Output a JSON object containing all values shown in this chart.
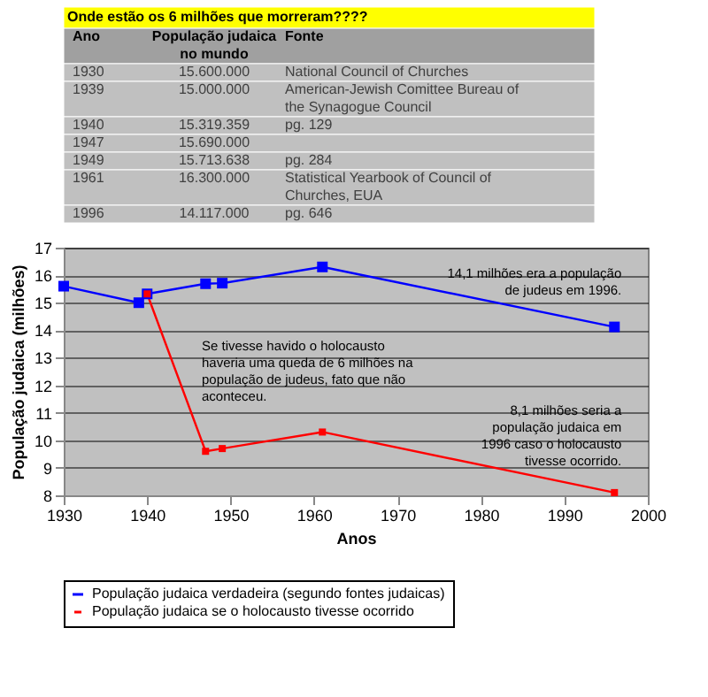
{
  "chart_data": {
    "type": "line",
    "xlabel": "Anos",
    "ylabel": "População judaica (milhões)",
    "xlim": [
      1930,
      2000
    ],
    "xticks": [
      1930,
      1940,
      1950,
      1960,
      1970,
      1980,
      1990,
      2000
    ],
    "ylim": [
      8,
      17
    ],
    "yticks": [
      8,
      9,
      10,
      11,
      12,
      13,
      14,
      15,
      16,
      17
    ],
    "grid": "y",
    "legend": "bottom",
    "marker": "square",
    "line_style": "solid",
    "series": [
      {
        "name": "População judaica verdadeira (segundo fontes judaicas)",
        "color": "#0000ff",
        "x": [
          1930,
          1939,
          1940,
          1947,
          1949,
          1961,
          1996
        ],
        "values": [
          15.6,
          15.0,
          15.32,
          15.69,
          15.71,
          16.3,
          14.12
        ]
      },
      {
        "name": "População judaica se o holocausto tivesse ocorrido",
        "color": "#ff0000",
        "x": [
          1940,
          1947,
          1949,
          1961,
          1996
        ],
        "values": [
          15.32,
          9.6,
          9.7,
          10.3,
          8.1
        ]
      }
    ],
    "annotations": [
      "Onde estão os 6 milhões que morreram????",
      "Ano",
      "População judaica no mundo",
      "Fonte",
      "1930",
      "15.600.000",
      "National Council of Churches",
      "1939",
      "15.000.000",
      "American-Jewish Comittee Bureau of the Synagogue Council",
      "1940",
      "15.319.359",
      "pg. 129",
      "1947",
      "15.690.000",
      null,
      "1949",
      "15.713.638",
      "pg. 284",
      "1961",
      "16.300.000",
      "Statistical Yearbook of Council of Churches, EUA",
      "1996",
      "14.117.000",
      "pg. 646",
      {
        "text": "14,1 milhões era a população de judeus em 1996.",
        "x": 1996,
        "y": 14.12
      },
      "Se tivesse havido o holocausto haveria uma queda de 6 milhões na população de judeus, fato que não aconteceu.",
      {
        "text": "8,1 milhões seria a população judaica em 1996 caso o holocausto tivesse ocorrido.",
        "x": 1996,
        "y": 8.1
      }
    ]
  }
}
